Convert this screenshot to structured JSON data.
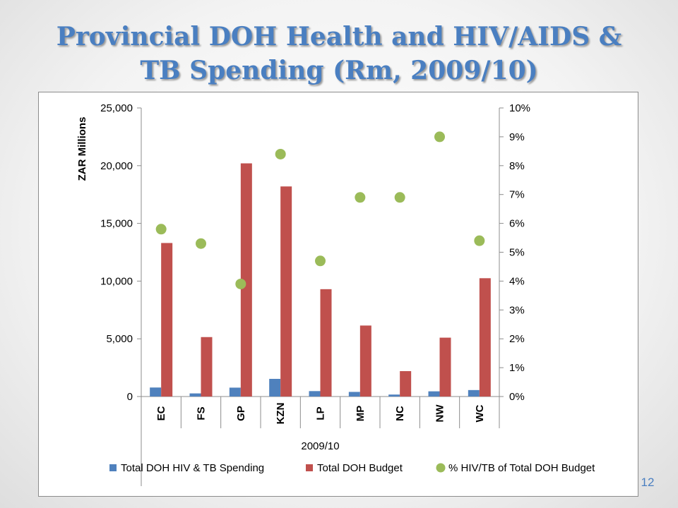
{
  "slide": {
    "title_line1": "Provincial DOH Health and HIV/AIDS &",
    "title_line2": "TB Spending (Rm, 2009/10)",
    "page_number": "12"
  },
  "chart_data": {
    "type": "bar",
    "categories": [
      "EC",
      "FS",
      "GP",
      "KZN",
      "LP",
      "MP",
      "NC",
      "NW",
      "WC"
    ],
    "series": [
      {
        "name": "Total DOH HIV & TB Spending",
        "type": "bar",
        "axis": "left",
        "color": "#4f81bd",
        "values": [
          780,
          270,
          770,
          1530,
          470,
          400,
          170,
          450,
          560
        ]
      },
      {
        "name": "Total DOH Budget",
        "type": "bar",
        "axis": "left",
        "color": "#c0504d",
        "values": [
          13300,
          5150,
          20200,
          18200,
          9300,
          6150,
          2200,
          5100,
          10250
        ]
      },
      {
        "name": "% HIV/TB of Total DOH Budget",
        "type": "scatter",
        "axis": "right",
        "color": "#9bbb59",
        "values": [
          0.058,
          0.053,
          0.039,
          0.084,
          0.047,
          0.069,
          0.069,
          0.09,
          0.054
        ]
      }
    ],
    "ylabel": "ZAR Millions",
    "xlabel": "2009/10",
    "ylim": [
      0,
      25000
    ],
    "y2lim": [
      0,
      0.1
    ],
    "yticks": [
      "0",
      "5,000",
      "10,000",
      "15,000",
      "20,000",
      "25,000"
    ],
    "y2ticks": [
      "0%",
      "1%",
      "2%",
      "3%",
      "4%",
      "5%",
      "6%",
      "7%",
      "8%",
      "9%",
      "10%"
    ],
    "legend_position": "bottom",
    "grid": false
  }
}
